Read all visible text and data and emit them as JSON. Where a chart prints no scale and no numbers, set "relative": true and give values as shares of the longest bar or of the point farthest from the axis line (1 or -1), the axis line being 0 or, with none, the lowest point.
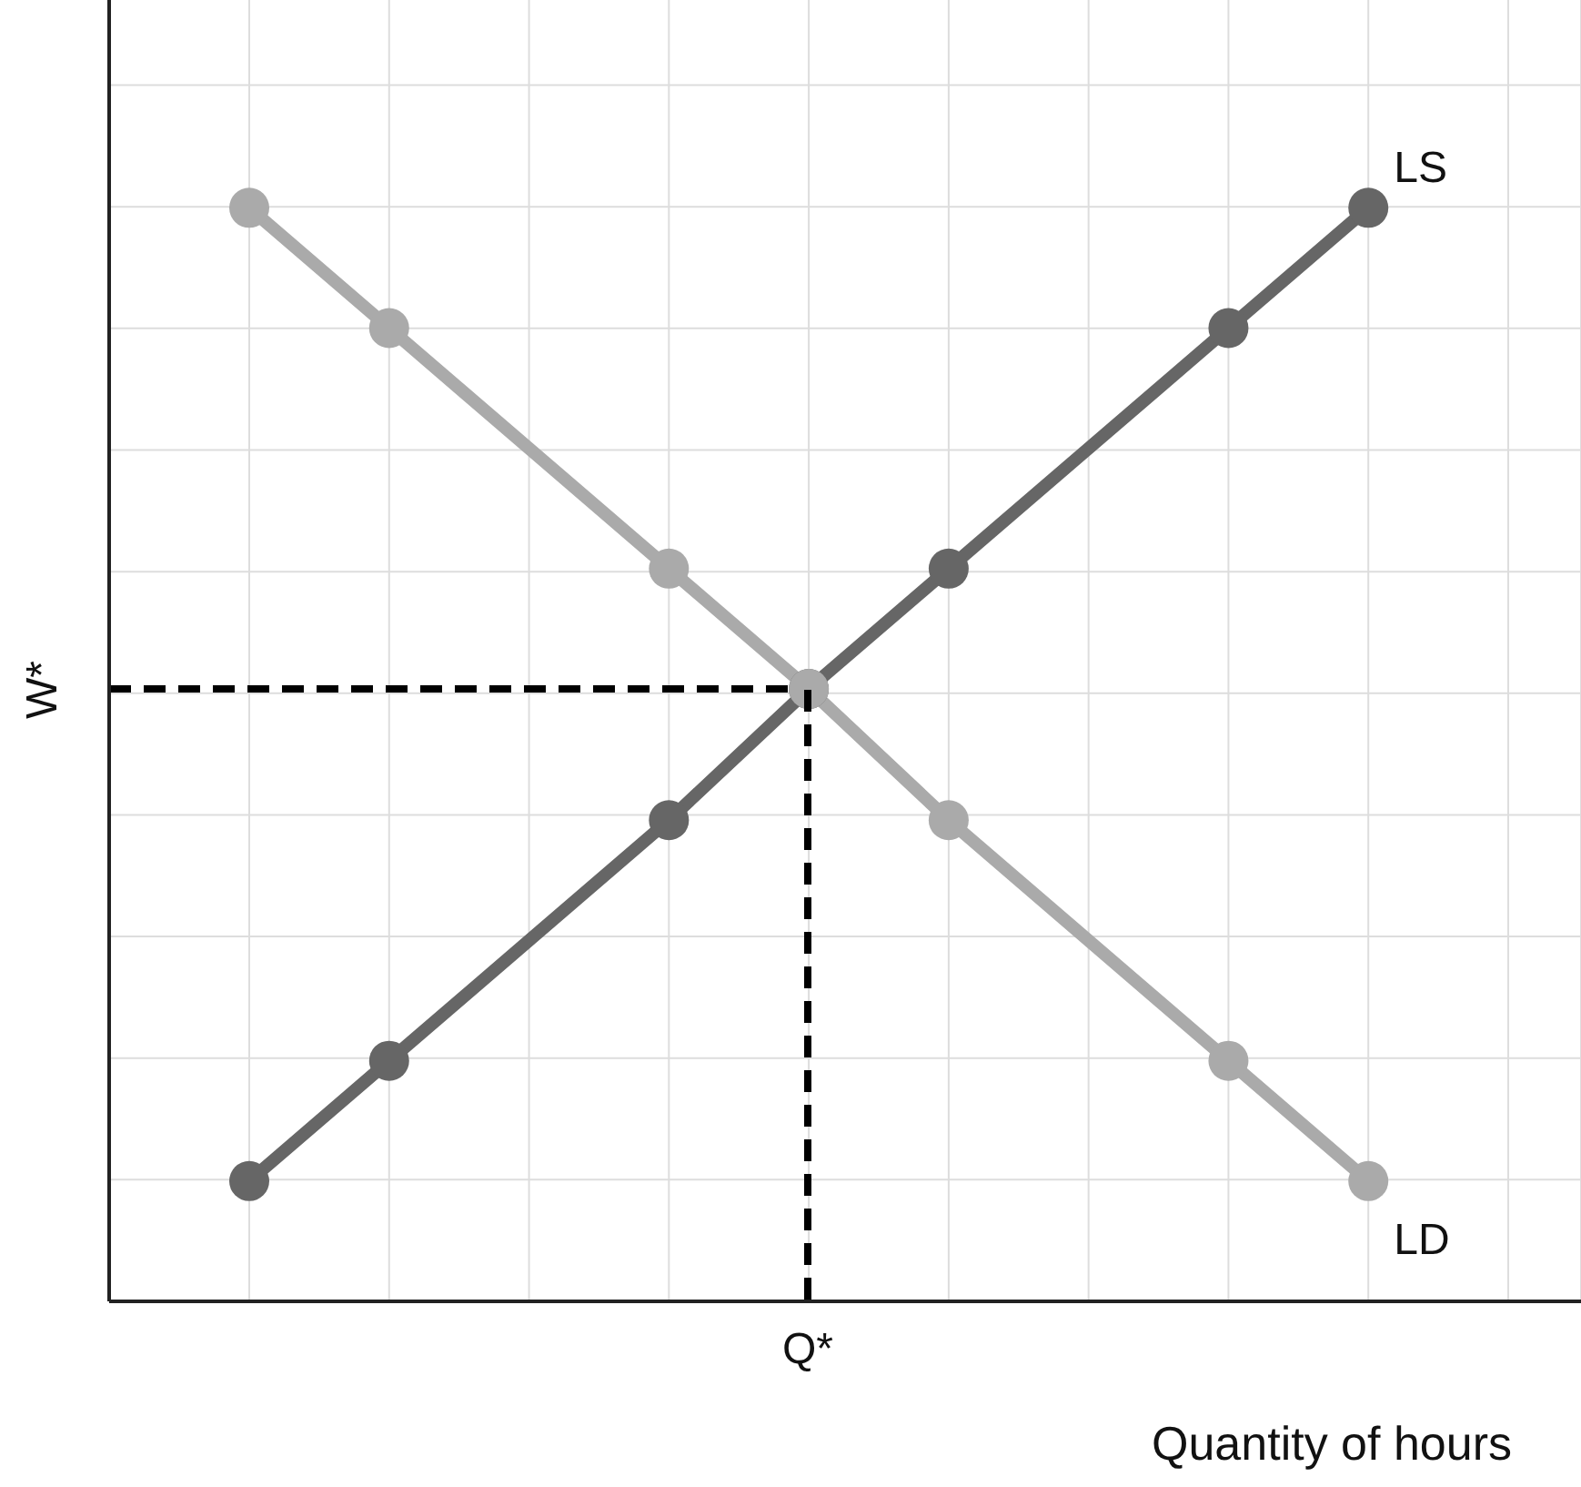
{
  "chart_data": {
    "type": "line",
    "relative": true,
    "xlabel": "Quantity of hours",
    "categories": [
      null,
      null,
      null,
      null,
      null,
      null,
      null,
      null,
      null,
      null
    ],
    "series": [
      {
        "name": "LS",
        "color": "#666666",
        "values": [
          0.11,
          0.22,
          null,
          0.44,
          0.56,
          0.67,
          null,
          0.89,
          1,
          null
        ]
      },
      {
        "name": "LD",
        "color": "#aaaaaa",
        "values": [
          1,
          0.89,
          null,
          0.67,
          0.56,
          0.44,
          null,
          0.22,
          0.11,
          null
        ]
      }
    ],
    "ref_lines": [
      {
        "axis": "y",
        "value": 0.56,
        "label": "W*",
        "color": "#000000",
        "line_style": "dashed"
      }
    ],
    "annotations": [
      "Q*"
    ],
    "grid": true,
    "legend": false,
    "marker": "circle",
    "line_style": "solid"
  }
}
